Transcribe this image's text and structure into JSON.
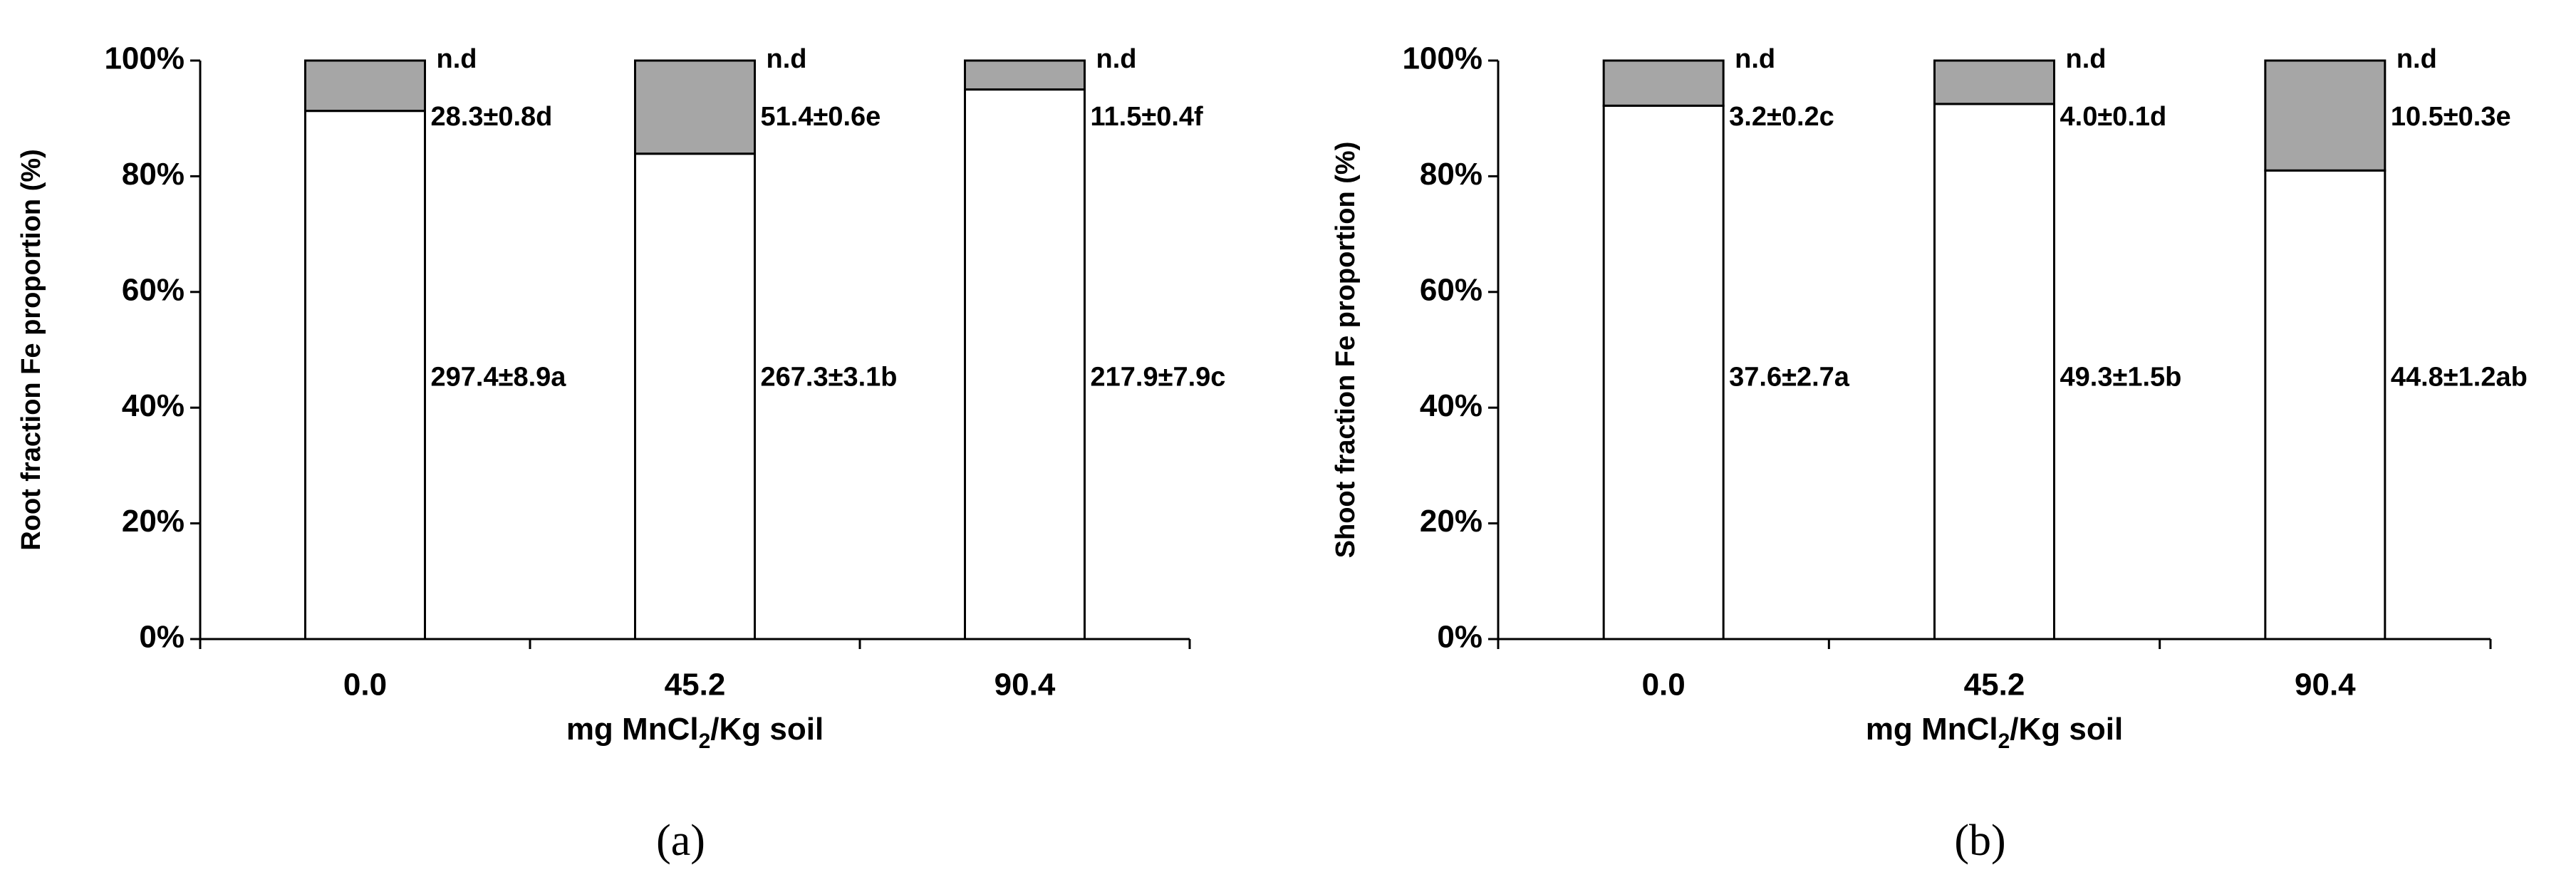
{
  "chart_data": [
    {
      "type": "bar",
      "stacked": true,
      "y_label": "Root fraction Fe proportion (%)",
      "x_label": [
        "mg MnCl",
        "2",
        "/Kg soil"
      ],
      "sublabel": "(a)",
      "categories": [
        "0.0",
        "45.2",
        "90.4"
      ],
      "series": [
        {
          "color": "#ffffff",
          "values": [
            91.3,
            83.9,
            95.0
          ],
          "labels": [
            "297.4±8.9a",
            "267.3±3.1b",
            "217.9±7.9c"
          ]
        },
        {
          "color": "#a6a6a6",
          "values": [
            8.7,
            16.1,
            5.0
          ],
          "labels": [
            "28.3±0.8d",
            "51.4±0.6e",
            "11.5±0.4f"
          ]
        }
      ],
      "top_labels": [
        "n.d",
        "n.d",
        "n.d"
      ],
      "ylim": [
        0,
        100
      ],
      "yticks": [
        {
          "value": 0,
          "label": "0%"
        },
        {
          "value": 20,
          "label": "20%"
        },
        {
          "value": 40,
          "label": "40%"
        },
        {
          "value": 60,
          "label": "60%"
        },
        {
          "value": 80,
          "label": "80%"
        },
        {
          "value": 100,
          "label": "100%"
        }
      ]
    },
    {
      "type": "bar",
      "stacked": true,
      "y_label": "Shoot fraction Fe proportion (%)",
      "x_label": [
        "mg MnCl",
        "2",
        "/Kg soil"
      ],
      "sublabel": "(b)",
      "categories": [
        "0.0",
        "45.2",
        "90.4"
      ],
      "series": [
        {
          "color": "#ffffff",
          "values": [
            92.2,
            92.5,
            81.0
          ],
          "labels": [
            "37.6±2.7a",
            "49.3±1.5b",
            "44.8±1.2ab"
          ]
        },
        {
          "color": "#a6a6a6",
          "values": [
            7.8,
            7.5,
            19.0
          ],
          "labels": [
            "3.2±0.2c",
            "4.0±0.1d",
            "10.5±0.3e"
          ]
        }
      ],
      "top_labels": [
        "n.d",
        "n.d",
        "n.d"
      ],
      "ylim": [
        0,
        100
      ],
      "yticks": [
        {
          "value": 0,
          "label": "0%"
        },
        {
          "value": 20,
          "label": "20%"
        },
        {
          "value": 40,
          "label": "40%"
        },
        {
          "value": 60,
          "label": "60%"
        },
        {
          "value": 80,
          "label": "80%"
        },
        {
          "value": 100,
          "label": "100%"
        }
      ]
    }
  ]
}
